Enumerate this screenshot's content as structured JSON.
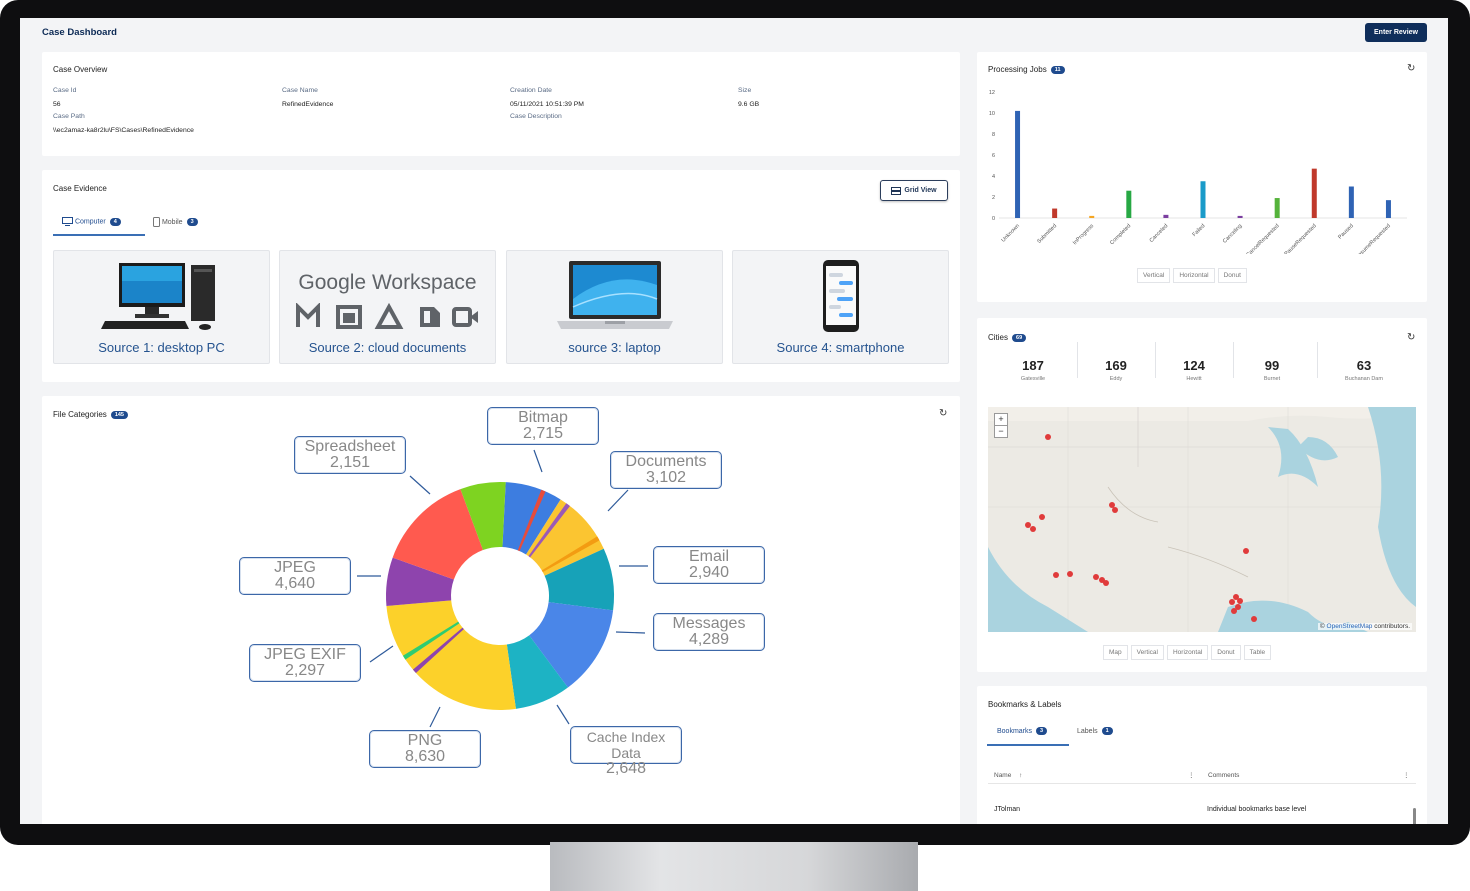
{
  "app": {
    "title": "Case Dashboard",
    "enter_review_label": "Enter Review"
  },
  "case_overview": {
    "title": "Case Overview",
    "fields": {
      "case_id_label": "Case Id",
      "case_id": "56",
      "case_name_label": "Case Name",
      "case_name": "RefinedEvidence",
      "creation_date_label": "Creation Date",
      "creation_date": "05/11/2021 10:51:39 PM",
      "size_label": "Size",
      "size": "9.6 GB",
      "case_path_label": "Case Path",
      "case_path": "\\\\ec2amaz-ka8r2lu\\FS\\Cases\\RefinedEvidence",
      "case_description_label": "Case Description"
    }
  },
  "case_evidence": {
    "title": "Case Evidence",
    "grid_view_label": "Grid View",
    "tabs": [
      {
        "label": "Computer",
        "count": "4",
        "icon": "monitor-icon"
      },
      {
        "label": "Mobile",
        "count": "3",
        "icon": "phone-icon"
      }
    ],
    "sources": [
      {
        "label": "Source 1: desktop PC",
        "icon": "desktop-pc-image"
      },
      {
        "label": "Source 2: cloud documents",
        "brand": "Google Workspace",
        "icon": "google-workspace-logo"
      },
      {
        "label": "source 3: laptop",
        "icon": "laptop-image"
      },
      {
        "label": "Source 4: smartphone",
        "icon": "smartphone-image"
      }
    ]
  },
  "file_categories": {
    "title": "File Categories",
    "count": "145",
    "callouts": {
      "bitmap": {
        "name": "Bitmap",
        "value": "2,715"
      },
      "documents": {
        "name": "Documents",
        "value": "3,102"
      },
      "email": {
        "name": "Email",
        "value": "2,940"
      },
      "messages": {
        "name": "Messages",
        "value": "4,289"
      },
      "cache": {
        "name": "Cache Index Data",
        "value": "2,648"
      },
      "png": {
        "name": "PNG",
        "value": "8,630"
      },
      "jpeg_exif": {
        "name": "JPEG EXIF",
        "value": "2,297"
      },
      "jpeg": {
        "name": "JPEG",
        "value": "4,640"
      },
      "spreadsheet": {
        "name": "Spreadsheet",
        "value": "2,151"
      }
    }
  },
  "chart_data": [
    {
      "type": "bar",
      "title": "Processing Jobs",
      "categories": [
        "Unknown",
        "Submitted",
        "InProgress",
        "Completed",
        "Canceled",
        "Failed",
        "Canceling",
        "CancelRequested",
        "PauseRequested",
        "Paused",
        "ResumeRequested"
      ],
      "values": [
        10.2,
        0.9,
        0.2,
        2.6,
        0.3,
        3.5,
        0.2,
        1.9,
        4.7,
        3.0,
        1.7
      ],
      "colors": [
        "#2f63b4",
        "#c0392b",
        "#f5a623",
        "#27a844",
        "#7b3fa0",
        "#1a9bc9",
        "#7b3fa0",
        "#55b33b",
        "#c0392b",
        "#2f63b4",
        "#2f63b4"
      ],
      "yticks": [
        "0",
        "2",
        "4",
        "6",
        "8",
        "10",
        "12"
      ],
      "ylim": [
        0,
        12
      ]
    },
    {
      "type": "pie",
      "title": "File Categories",
      "categories": [
        "Bitmap",
        "Documents",
        "Email",
        "Messages",
        "Cache Index Data",
        "PNG",
        "JPEG EXIF",
        "JPEG",
        "Spreadsheet"
      ],
      "values": [
        2715,
        3102,
        2940,
        4289,
        2648,
        8630,
        2297,
        4640,
        2151
      ]
    }
  ],
  "processing_jobs": {
    "title": "Processing Jobs",
    "count": "11",
    "view_tabs": [
      "Vertical",
      "Horizontal",
      "Donut"
    ]
  },
  "cities": {
    "title": "Cities",
    "count": "69",
    "stats": [
      {
        "value": "187",
        "name": "Gatesville"
      },
      {
        "value": "169",
        "name": "Eddy"
      },
      {
        "value": "124",
        "name": "Hewitt"
      },
      {
        "value": "99",
        "name": "Burnet"
      },
      {
        "value": "63",
        "name": "Buchanan Dam"
      }
    ],
    "map_attr_link": "OpenStreetMap",
    "map_attr_text": " contributors.",
    "copyright": "©",
    "view_tabs": [
      "Map",
      "Vertical",
      "Horizontal",
      "Donut",
      "Table"
    ]
  },
  "bookmarks": {
    "title": "Bookmarks & Labels",
    "tabs": [
      {
        "label": "Bookmarks",
        "count": "3"
      },
      {
        "label": "Labels",
        "count": "1"
      }
    ],
    "columns": [
      "Name",
      "Comments"
    ],
    "sort_indicator": "↑",
    "rows": [
      {
        "name": "JTolman",
        "comment": "Individual bookmarks base level"
      }
    ]
  }
}
